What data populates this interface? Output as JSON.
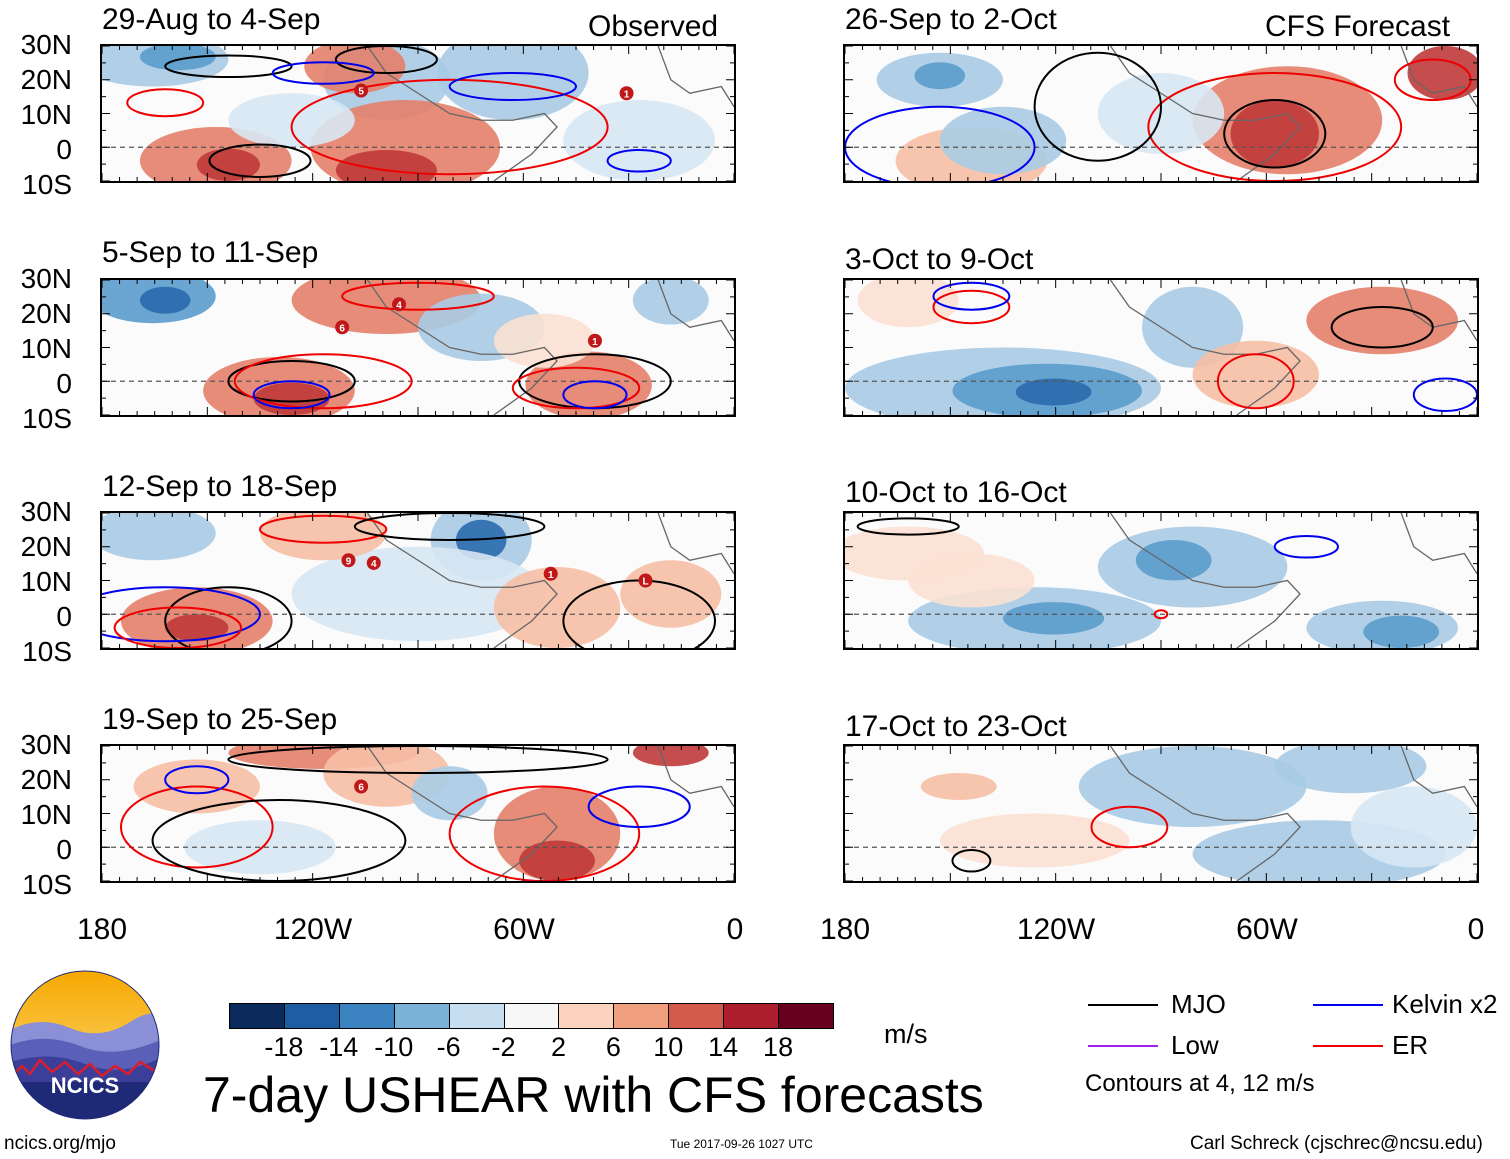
{
  "header": {
    "observed_label": "Observed",
    "forecast_label": "CFS Forecast"
  },
  "panels": [
    {
      "title": "29-Aug to 4-Sep",
      "type": "observed",
      "storm_ids": [
        "5",
        "1"
      ]
    },
    {
      "title": "5-Sep to 11-Sep",
      "type": "observed",
      "storm_ids": [
        "6",
        "4",
        "1"
      ]
    },
    {
      "title": "12-Sep to 18-Sep",
      "type": "observed",
      "storm_ids": [
        "9",
        "4",
        "1",
        "L"
      ]
    },
    {
      "title": "19-Sep to 25-Sep",
      "type": "observed",
      "storm_ids": [
        "6"
      ]
    },
    {
      "title": "26-Sep to 2-Oct",
      "type": "forecast",
      "storm_ids": []
    },
    {
      "title": "3-Oct to 9-Oct",
      "type": "forecast",
      "storm_ids": []
    },
    {
      "title": "10-Oct to 16-Oct",
      "type": "forecast",
      "storm_ids": []
    },
    {
      "title": "17-Oct to 23-Oct",
      "type": "forecast",
      "storm_ids": []
    }
  ],
  "axes": {
    "lat_ticks": [
      "30N",
      "20N",
      "10N",
      "0",
      "10S"
    ],
    "lon_ticks": [
      "180",
      "120W",
      "60W",
      "0"
    ]
  },
  "colorbar": {
    "labels": [
      "-18",
      "-14",
      "-10",
      "-6",
      "-2",
      "2",
      "6",
      "10",
      "14",
      "18"
    ],
    "colors": [
      "#0b2b5c",
      "#1f5da3",
      "#3a83c0",
      "#7ab2d8",
      "#c7def0",
      "#f7f7f7",
      "#fbd2bd",
      "#f0a07f",
      "#d45a4b",
      "#ad1f2c",
      "#67001f"
    ],
    "units": "m/s"
  },
  "legend": {
    "mjo": {
      "label": "MJO",
      "color": "#000000"
    },
    "kelvin": {
      "label": "Kelvin x2",
      "color": "#0000ee"
    },
    "low": {
      "label": "Low",
      "color": "#a020f0"
    },
    "er": {
      "label": "ER",
      "color": "#ee0000"
    },
    "note": "Contours at 4, 12 m/s"
  },
  "footer": {
    "title": "7-day USHEAR with CFS forecasts",
    "website": "ncics.org/mjo",
    "timestamp": "Tue 2017-09-26 1027 UTC",
    "credit": "Carl Schreck (cjschrec@ncsu.edu)",
    "logo_text": "NCICS"
  },
  "chart_data": {
    "type": "heatmap",
    "title": "7-day USHEAR with CFS forecasts",
    "variable": "USHEAR (zonal wind shear)",
    "units": "m/s",
    "lat_range": [
      -10,
      30
    ],
    "lon_range": [
      -180,
      0
    ],
    "contour_levels": [
      4,
      12
    ],
    "color_levels": [
      -18,
      -14,
      -10,
      -6,
      -2,
      2,
      6,
      10,
      14,
      18
    ],
    "series": [
      {
        "name": "MJO",
        "color": "#000000"
      },
      {
        "name": "Kelvin x2",
        "color": "#0000ee"
      },
      {
        "name": "Low",
        "color": "#a020f0"
      },
      {
        "name": "ER",
        "color": "#ee0000"
      }
    ]
  }
}
